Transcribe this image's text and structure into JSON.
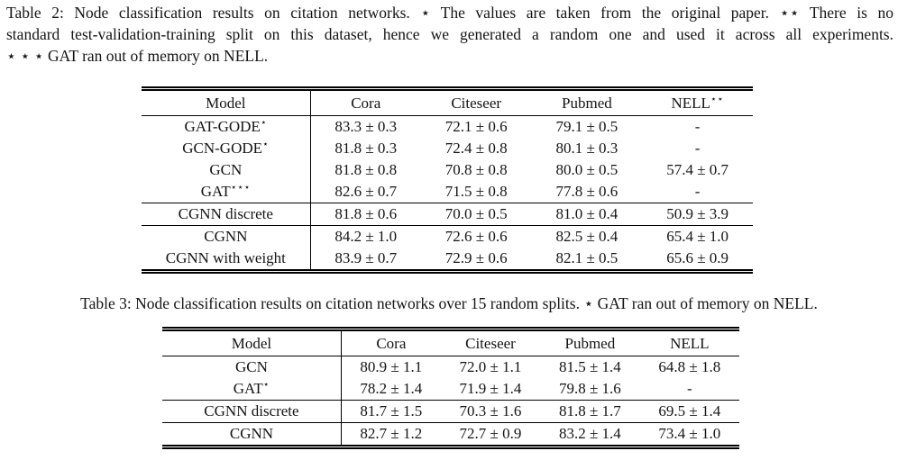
{
  "page": {
    "background": "#ffffff",
    "text_color": "#141414"
  },
  "table2": {
    "caption_lines": [
      "Table 2: Node classification results on citation networks. ⋆ The values are taken from the original paper. ⋆⋆ There is no",
      "standard test-validation-training split on this dataset, hence we generated a random one and used it across all experiments.",
      "⋆ ⋆ ⋆ GAT ran out of memory on NELL."
    ],
    "headers": [
      "Model",
      "Cora",
      "Citeseer",
      "Pubmed",
      "NELL"
    ],
    "nell_sup": "⋆⋆",
    "rows": [
      {
        "model": "GAT-GODE",
        "sup": "⋆",
        "cells": [
          {
            "v": "83.3 ± 0.3",
            "b": false
          },
          {
            "v": "72.1 ± 0.6",
            "b": false
          },
          {
            "v": "79.1 ± 0.5",
            "b": false
          },
          {
            "v": "-",
            "b": false
          }
        ]
      },
      {
        "model": "GCN-GODE",
        "sup": "⋆",
        "cells": [
          {
            "v": "81.8 ± 0.3",
            "b": false
          },
          {
            "v": "72.4 ± 0.8",
            "b": false
          },
          {
            "v": "80.1 ± 0.3",
            "b": false
          },
          {
            "v": "-",
            "b": false
          }
        ]
      },
      {
        "model": "GCN",
        "sup": "",
        "cells": [
          {
            "v": "81.8 ± 0.8",
            "b": false
          },
          {
            "v": "70.8 ± 0.8",
            "b": false
          },
          {
            "v": "80.0 ± 0.5",
            "b": false
          },
          {
            "v": "57.4 ± 0.7",
            "b": false
          }
        ]
      },
      {
        "model": "GAT",
        "sup": "⋆⋆⋆",
        "cells": [
          {
            "v": "82.6 ± 0.7",
            "b": false
          },
          {
            "v": "71.5 ± 0.8",
            "b": false
          },
          {
            "v": "77.8 ± 0.6",
            "b": false
          },
          {
            "v": "-",
            "b": false
          }
        ]
      },
      {
        "model": "CGNN discrete",
        "sup": "",
        "cells": [
          {
            "v": "81.8 ± 0.6",
            "b": false
          },
          {
            "v": "70.0 ± 0.5",
            "b": false
          },
          {
            "v": "81.0 ± 0.4",
            "b": false
          },
          {
            "v": "50.9 ± 3.9",
            "b": false
          }
        ]
      },
      {
        "model": "CGNN",
        "sup": "",
        "cells": [
          {
            "v": "84.2 ± 1.0",
            "b": true
          },
          {
            "v": "72.6 ± 0.6",
            "b": false
          },
          {
            "v": "82.5 ± 0.4",
            "b": true
          },
          {
            "v": "65.4 ± 1.0",
            "b": false
          }
        ]
      },
      {
        "model": "CGNN with weight",
        "sup": "",
        "cells": [
          {
            "v": "83.9 ± 0.7",
            "b": false
          },
          {
            "v": "72.9 ± 0.6",
            "b": true
          },
          {
            "v": "82.1 ± 0.5",
            "b": false
          },
          {
            "v": "65.6 ± 0.9",
            "b": true
          }
        ]
      }
    ]
  },
  "table3": {
    "caption": "Table 3: Node classification results on citation networks over 15 random splits. ⋆ GAT ran out of memory on NELL.",
    "headers": [
      "Model",
      "Cora",
      "Citeseer",
      "Pubmed",
      "NELL"
    ],
    "rows": [
      {
        "model": "GCN",
        "sup": "",
        "cells": [
          {
            "v": "80.9 ± 1.1",
            "b": false
          },
          {
            "v": "72.0 ± 1.1",
            "b": false
          },
          {
            "v": "81.5 ± 1.4",
            "b": false
          },
          {
            "v": "64.8 ± 1.8",
            "b": false
          }
        ]
      },
      {
        "model": "GAT",
        "sup": "⋆",
        "cells": [
          {
            "v": "78.2 ± 1.4",
            "b": false
          },
          {
            "v": "71.9 ± 1.4",
            "b": false
          },
          {
            "v": "79.8 ± 1.6",
            "b": false
          },
          {
            "v": "-",
            "b": false
          }
        ]
      },
      {
        "model": "CGNN discrete",
        "sup": "",
        "cells": [
          {
            "v": "81.7 ± 1.5",
            "b": false
          },
          {
            "v": "70.3 ± 1.6",
            "b": false
          },
          {
            "v": "81.8 ± 1.7",
            "b": false
          },
          {
            "v": "69.5 ± 1.4",
            "b": false
          }
        ]
      },
      {
        "model": "CGNN",
        "sup": "",
        "cells": [
          {
            "v": "82.7 ± 1.2",
            "b": true
          },
          {
            "v": "72.7 ± 0.9",
            "b": true
          },
          {
            "v": "83.2 ± 1.4",
            "b": true
          },
          {
            "v": "73.4 ± 1.0",
            "b": true
          }
        ]
      }
    ]
  }
}
